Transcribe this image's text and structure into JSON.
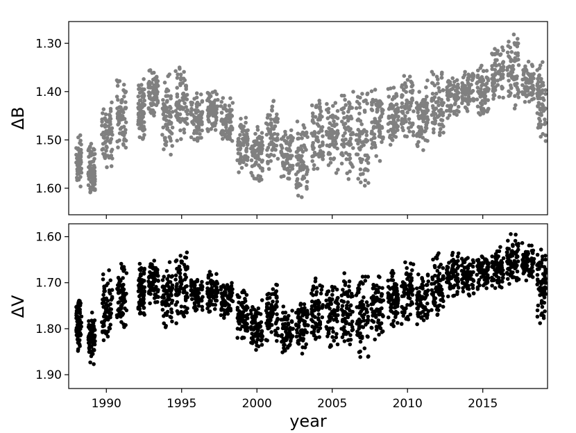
{
  "chart_data": [
    {
      "type": "scatter",
      "panel": "top",
      "ylabel": "ΔB",
      "xlabel": "",
      "xlim": [
        1987.5,
        2019.3
      ],
      "ylim": [
        1.655,
        1.255
      ],
      "y_inverted": true,
      "yticks": [
        1.3,
        1.4,
        1.5,
        1.6
      ],
      "ytick_labels": [
        "1.30",
        "1.40",
        "1.50",
        "1.60"
      ],
      "xticks": [
        1990,
        1995,
        2000,
        2005,
        2010,
        2015
      ],
      "xtick_labels_shown": false,
      "grid": false,
      "marker_color": "#808080",
      "seasons": [
        {
          "x": [
            1988.0,
            1988.35
          ],
          "y": [
            1.48,
            1.61
          ]
        },
        {
          "x": [
            1988.8,
            1989.25
          ],
          "y": [
            1.5,
            1.63
          ]
        },
        {
          "x": [
            1989.7,
            1990.4
          ],
          "y": [
            1.41,
            1.56
          ]
        },
        {
          "x": [
            1990.7,
            1991.35
          ],
          "y": [
            1.37,
            1.54
          ]
        },
        {
          "x": [
            1992.1,
            1992.55
          ],
          "y": [
            1.37,
            1.51
          ]
        },
        {
          "x": [
            1992.8,
            1993.45
          ],
          "y": [
            1.35,
            1.46
          ]
        },
        {
          "x": [
            1993.7,
            1994.4
          ],
          "y": [
            1.35,
            1.54
          ]
        },
        {
          "x": [
            1994.6,
            1995.4
          ],
          "y": [
            1.34,
            1.52
          ]
        },
        {
          "x": [
            1995.6,
            1996.4
          ],
          "y": [
            1.4,
            1.51
          ]
        },
        {
          "x": [
            1996.7,
            1997.4
          ],
          "y": [
            1.39,
            1.49
          ]
        },
        {
          "x": [
            1997.6,
            1998.4
          ],
          "y": [
            1.41,
            1.51
          ]
        },
        {
          "x": [
            1998.7,
            1999.4
          ],
          "y": [
            1.44,
            1.57
          ]
        },
        {
          "x": [
            1999.6,
            2000.4
          ],
          "y": [
            1.46,
            1.59
          ]
        },
        {
          "x": [
            2000.6,
            2001.4
          ],
          "y": [
            1.41,
            1.57
          ]
        },
        {
          "x": [
            2001.6,
            2002.4
          ],
          "y": [
            1.47,
            1.59
          ]
        },
        {
          "x": [
            2002.6,
            2003.4
          ],
          "y": [
            1.45,
            1.63
          ]
        },
        {
          "x": [
            2003.6,
            2004.4
          ],
          "y": [
            1.41,
            1.57
          ]
        },
        {
          "x": [
            2004.6,
            2005.4
          ],
          "y": [
            1.4,
            1.58
          ]
        },
        {
          "x": [
            2005.6,
            2006.4
          ],
          "y": [
            1.39,
            1.59
          ]
        },
        {
          "x": [
            2006.6,
            2007.4
          ],
          "y": [
            1.38,
            1.62
          ]
        },
        {
          "x": [
            2007.6,
            2008.4
          ],
          "y": [
            1.38,
            1.56
          ]
        },
        {
          "x": [
            2008.7,
            2009.4
          ],
          "y": [
            1.38,
            1.52
          ]
        },
        {
          "x": [
            2009.6,
            2010.4
          ],
          "y": [
            1.35,
            1.51
          ]
        },
        {
          "x": [
            2010.6,
            2011.4
          ],
          "y": [
            1.37,
            1.53
          ]
        },
        {
          "x": [
            2011.6,
            2012.4
          ],
          "y": [
            1.34,
            1.52
          ]
        },
        {
          "x": [
            2012.6,
            2013.4
          ],
          "y": [
            1.36,
            1.46
          ]
        },
        {
          "x": [
            2013.6,
            2014.4
          ],
          "y": [
            1.35,
            1.45
          ]
        },
        {
          "x": [
            2014.6,
            2015.4
          ],
          "y": [
            1.34,
            1.45
          ]
        },
        {
          "x": [
            2015.6,
            2016.4
          ],
          "y": [
            1.3,
            1.43
          ]
        },
        {
          "x": [
            2016.6,
            2017.4
          ],
          "y": [
            1.28,
            1.44
          ]
        },
        {
          "x": [
            2017.6,
            2018.4
          ],
          "y": [
            1.33,
            1.43
          ]
        },
        {
          "x": [
            2018.6,
            2019.2
          ],
          "y": [
            1.33,
            1.52
          ]
        }
      ]
    },
    {
      "type": "scatter",
      "panel": "bottom",
      "ylabel": "ΔV",
      "xlabel": "year",
      "xlim": [
        1987.5,
        2019.3
      ],
      "ylim": [
        1.93,
        1.572
      ],
      "y_inverted": true,
      "yticks": [
        1.6,
        1.7,
        1.8,
        1.9
      ],
      "ytick_labels": [
        "1.60",
        "1.70",
        "1.80",
        "1.90"
      ],
      "xticks": [
        1990,
        1995,
        2000,
        2005,
        2010,
        2015
      ],
      "xtick_labels": [
        "1990",
        "1995",
        "2000",
        "2005",
        "2010",
        "2015"
      ],
      "grid": false,
      "marker_color": "#000000",
      "seasons": [
        {
          "x": [
            1988.0,
            1988.35
          ],
          "y": [
            1.72,
            1.86
          ]
        },
        {
          "x": [
            1988.8,
            1989.25
          ],
          "y": [
            1.75,
            1.88
          ]
        },
        {
          "x": [
            1989.7,
            1990.4
          ],
          "y": [
            1.67,
            1.84
          ]
        },
        {
          "x": [
            1990.7,
            1991.35
          ],
          "y": [
            1.63,
            1.81
          ]
        },
        {
          "x": [
            1992.1,
            1992.55
          ],
          "y": [
            1.65,
            1.78
          ]
        },
        {
          "x": [
            1992.8,
            1993.45
          ],
          "y": [
            1.65,
            1.75
          ]
        },
        {
          "x": [
            1993.7,
            1994.4
          ],
          "y": [
            1.64,
            1.81
          ]
        },
        {
          "x": [
            1994.6,
            1995.4
          ],
          "y": [
            1.63,
            1.79
          ]
        },
        {
          "x": [
            1995.6,
            1996.4
          ],
          "y": [
            1.68,
            1.77
          ]
        },
        {
          "x": [
            1996.7,
            1997.4
          ],
          "y": [
            1.67,
            1.77
          ]
        },
        {
          "x": [
            1997.6,
            1998.4
          ],
          "y": [
            1.69,
            1.78
          ]
        },
        {
          "x": [
            1998.7,
            1999.4
          ],
          "y": [
            1.71,
            1.83
          ]
        },
        {
          "x": [
            1999.6,
            2000.4
          ],
          "y": [
            1.73,
            1.86
          ]
        },
        {
          "x": [
            2000.6,
            2001.4
          ],
          "y": [
            1.69,
            1.84
          ]
        },
        {
          "x": [
            2001.6,
            2002.4
          ],
          "y": [
            1.74,
            1.86
          ]
        },
        {
          "x": [
            2002.6,
            2003.4
          ],
          "y": [
            1.73,
            1.87
          ]
        },
        {
          "x": [
            2003.6,
            2004.4
          ],
          "y": [
            1.68,
            1.84
          ]
        },
        {
          "x": [
            2004.6,
            2005.4
          ],
          "y": [
            1.67,
            1.85
          ]
        },
        {
          "x": [
            2005.6,
            2006.4
          ],
          "y": [
            1.67,
            1.86
          ]
        },
        {
          "x": [
            2006.6,
            2007.4
          ],
          "y": [
            1.66,
            1.88
          ]
        },
        {
          "x": [
            2007.6,
            2008.4
          ],
          "y": [
            1.67,
            1.84
          ]
        },
        {
          "x": [
            2008.7,
            2009.4
          ],
          "y": [
            1.67,
            1.81
          ]
        },
        {
          "x": [
            2009.6,
            2010.4
          ],
          "y": [
            1.65,
            1.8
          ]
        },
        {
          "x": [
            2010.6,
            2011.4
          ],
          "y": [
            1.67,
            1.8
          ]
        },
        {
          "x": [
            2011.6,
            2012.4
          ],
          "y": [
            1.63,
            1.8
          ]
        },
        {
          "x": [
            2012.6,
            2013.4
          ],
          "y": [
            1.63,
            1.74
          ]
        },
        {
          "x": [
            2013.6,
            2014.4
          ],
          "y": [
            1.64,
            1.73
          ]
        },
        {
          "x": [
            2014.6,
            2015.4
          ],
          "y": [
            1.63,
            1.72
          ]
        },
        {
          "x": [
            2015.6,
            2016.4
          ],
          "y": [
            1.62,
            1.72
          ]
        },
        {
          "x": [
            2016.6,
            2017.4
          ],
          "y": [
            1.59,
            1.71
          ]
        },
        {
          "x": [
            2017.6,
            2018.4
          ],
          "y": [
            1.61,
            1.7
          ]
        },
        {
          "x": [
            2018.6,
            2019.2
          ],
          "y": [
            1.62,
            1.8
          ]
        }
      ]
    }
  ]
}
